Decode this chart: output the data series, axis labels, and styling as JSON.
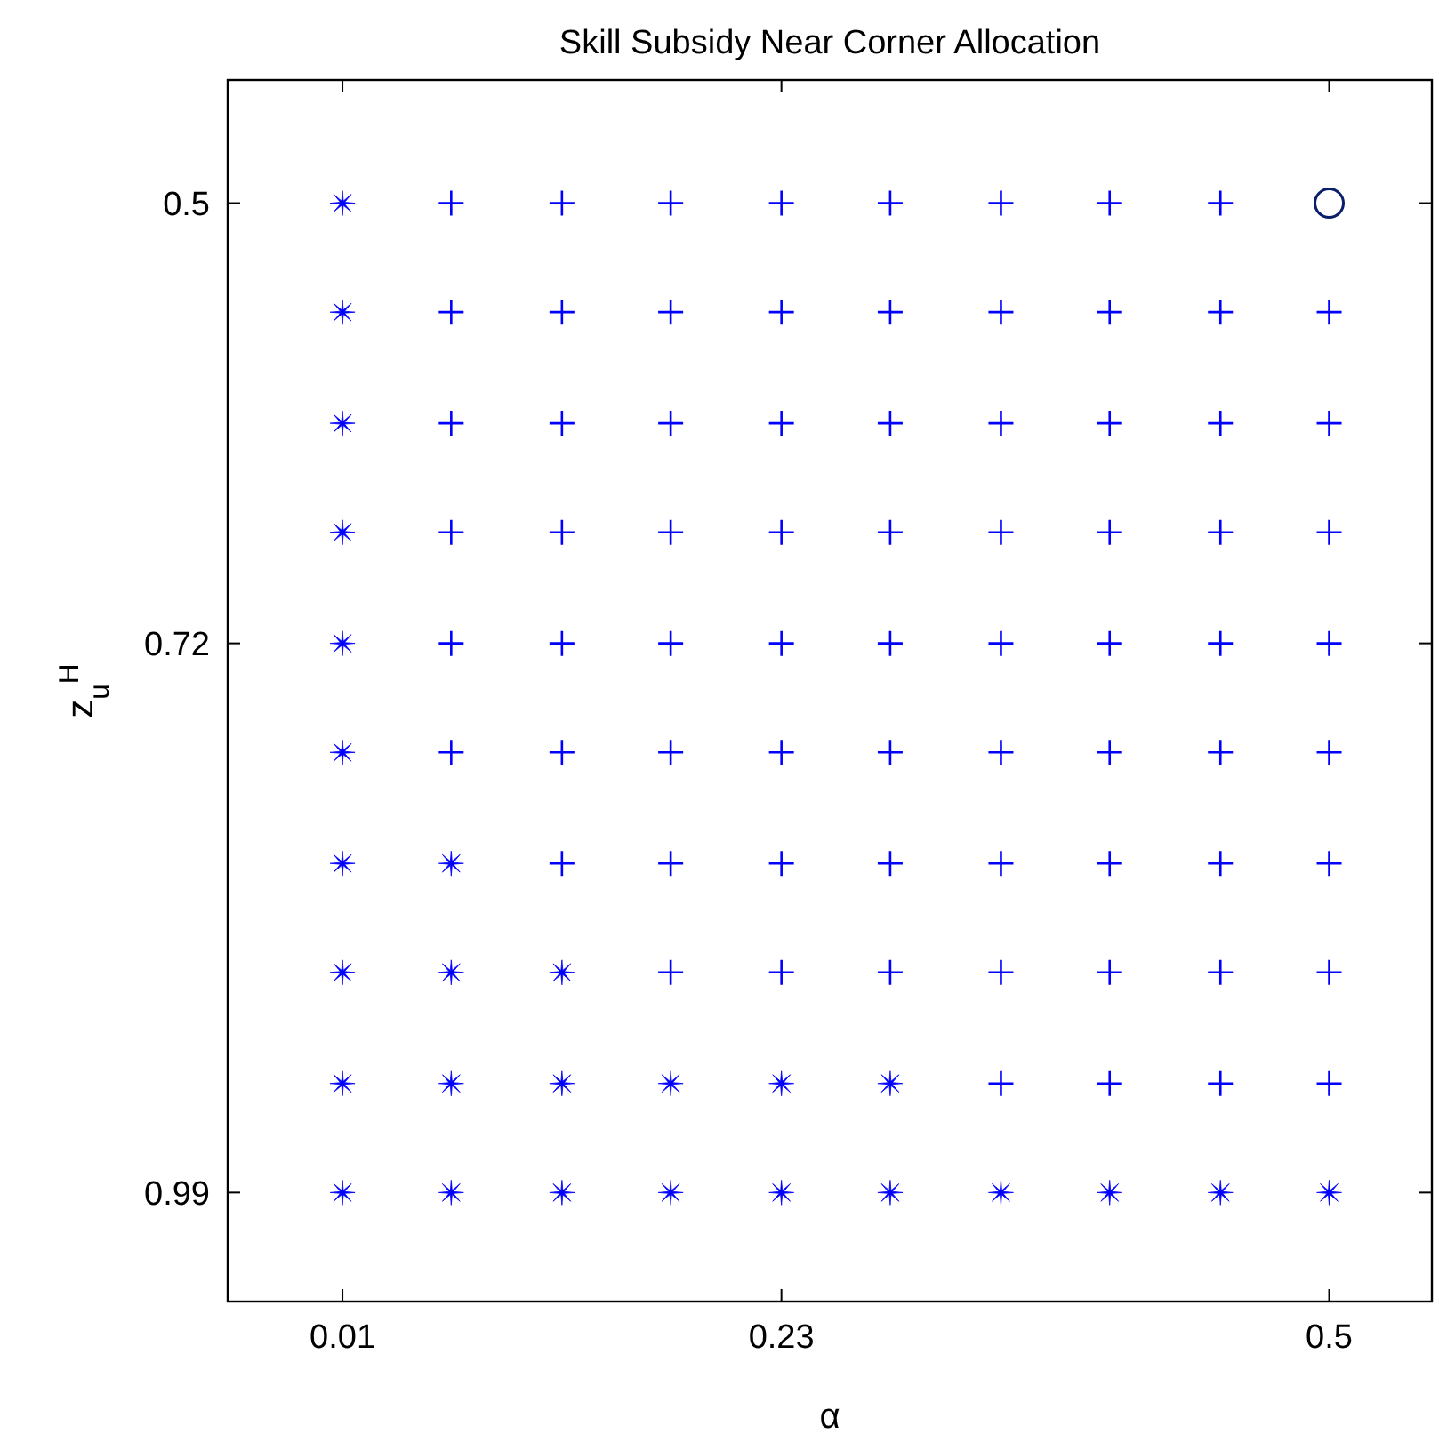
{
  "chart_data": {
    "type": "scatter",
    "title": "Skill Subsidy Near Corner Allocation",
    "xlabel": "α",
    "ylabel": "z$_{u}$$^{H}$",
    "xlim": [
      -0.047,
      0.551
    ],
    "ylim": [
      1.044,
      0.439
    ],
    "xticks": [
      0.01,
      {
        "value": 0.228,
        "label": "0.23"
      },
      0.5
    ],
    "yticks": [
      0.5,
      {
        "value": 0.718,
        "label": "0.72"
      },
      0.99
    ],
    "series": [
      {
        "marker": "star",
        "color": "#0000ff",
        "x": [
          0.01,
          0.01,
          0.01,
          0.01,
          0.01,
          0.01,
          0.01,
          0.064,
          0.01,
          0.064,
          0.119,
          0.01,
          0.064,
          0.119,
          0.173,
          0.228,
          0.282,
          0.01,
          0.064,
          0.119,
          0.173,
          0.228,
          0.282,
          0.337,
          0.391,
          0.446,
          0.5
        ],
        "values": [
          0.5,
          0.554,
          0.609,
          0.663,
          0.718,
          0.772,
          0.827,
          0.827,
          0.881,
          0.881,
          0.881,
          0.936,
          0.936,
          0.936,
          0.936,
          0.936,
          0.936,
          0.99,
          0.99,
          0.99,
          0.99,
          0.99,
          0.99,
          0.99,
          0.99,
          0.99,
          0.99
        ]
      },
      {
        "marker": "cross",
        "color": "#0000ff",
        "x": [
          0.064,
          0.119,
          0.173,
          0.228,
          0.282,
          0.337,
          0.391,
          0.446,
          0.064,
          0.119,
          0.173,
          0.228,
          0.282,
          0.337,
          0.391,
          0.446,
          0.5,
          0.064,
          0.119,
          0.173,
          0.228,
          0.282,
          0.337,
          0.391,
          0.446,
          0.5,
          0.064,
          0.119,
          0.173,
          0.228,
          0.282,
          0.337,
          0.391,
          0.446,
          0.5,
          0.064,
          0.119,
          0.173,
          0.228,
          0.282,
          0.337,
          0.391,
          0.446,
          0.5,
          0.064,
          0.119,
          0.173,
          0.228,
          0.282,
          0.337,
          0.391,
          0.446,
          0.5,
          0.119,
          0.173,
          0.228,
          0.282,
          0.337,
          0.391,
          0.446,
          0.5,
          0.173,
          0.228,
          0.282,
          0.337,
          0.391,
          0.446,
          0.5,
          0.337,
          0.391,
          0.446,
          0.5
        ],
        "values": [
          0.5,
          0.5,
          0.5,
          0.5,
          0.5,
          0.5,
          0.5,
          0.5,
          0.554,
          0.554,
          0.554,
          0.554,
          0.554,
          0.554,
          0.554,
          0.554,
          0.554,
          0.609,
          0.609,
          0.609,
          0.609,
          0.609,
          0.609,
          0.609,
          0.609,
          0.609,
          0.663,
          0.663,
          0.663,
          0.663,
          0.663,
          0.663,
          0.663,
          0.663,
          0.663,
          0.718,
          0.718,
          0.718,
          0.718,
          0.718,
          0.718,
          0.718,
          0.718,
          0.718,
          0.772,
          0.772,
          0.772,
          0.772,
          0.772,
          0.772,
          0.772,
          0.772,
          0.772,
          0.827,
          0.827,
          0.827,
          0.827,
          0.827,
          0.827,
          0.827,
          0.827,
          0.881,
          0.881,
          0.881,
          0.881,
          0.881,
          0.881,
          0.881,
          0.936,
          0.936,
          0.936,
          0.936
        ]
      },
      {
        "marker": "circle",
        "color": "#0a1f6b",
        "x": [
          0.5
        ],
        "values": [
          0.5
        ]
      }
    ]
  }
}
